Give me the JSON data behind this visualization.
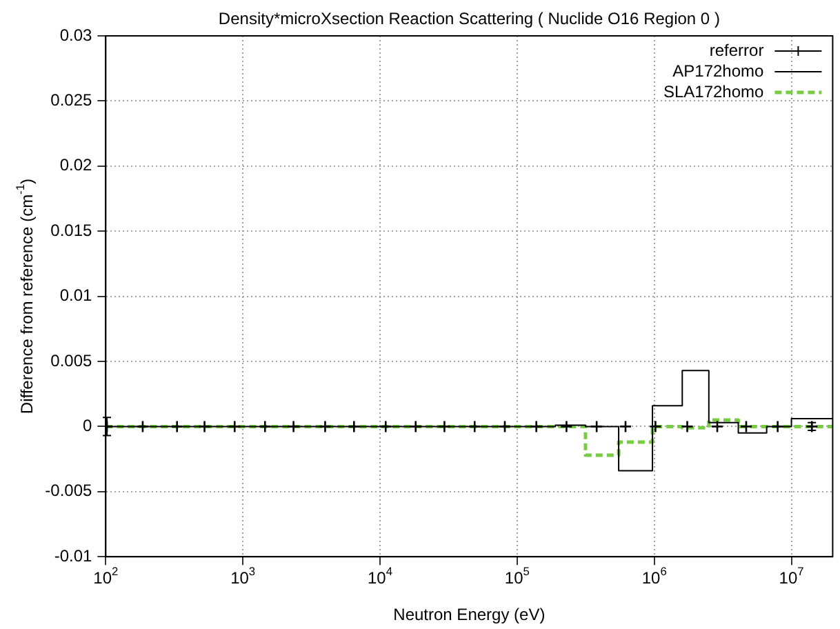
{
  "chart_data": {
    "type": "step",
    "title": "Density*microXsection Reaction Scattering ( Nuclide O16 Region 0 )",
    "xlabel": "Neutron Energy (eV)",
    "ylabel": "Difference from reference (cm$^{-1}$)",
    "log": "x",
    "xlim": [
      100,
      20000000
    ],
    "xticks": [
      {
        "value": 100,
        "label": "10$^{2}$"
      },
      {
        "value": 1000,
        "label": "10$^{3}$"
      },
      {
        "value": 10000,
        "label": "10$^{4}$"
      },
      {
        "value": 100000,
        "label": "10$^{5}$"
      },
      {
        "value": 1000000,
        "label": "10$^{6}$"
      },
      {
        "value": 10000000,
        "label": "10$^{7}$"
      }
    ],
    "ylim": [
      -0.01,
      0.03
    ],
    "yticks": [
      -0.01,
      -0.005,
      0,
      0.005,
      0.01,
      0.015,
      0.02,
      0.025,
      0.03
    ],
    "grid": true,
    "legend": "top right",
    "series": [
      {
        "name": "referror",
        "type": "scatter",
        "color": "#000000",
        "marker": "cross",
        "x": [
          102,
          186,
          331,
          525,
          871,
          1450,
          2340,
          3980,
          6460,
          11000,
          18200,
          29500,
          49000,
          81300,
          138000,
          229000,
          380000,
          617000,
          1020000,
          1740000,
          2880000,
          4680000,
          7940000,
          14100000
        ],
        "values": [
          0,
          0,
          0,
          0,
          0,
          0,
          0,
          0,
          0,
          0,
          0,
          0,
          0,
          0,
          0,
          0,
          0,
          0,
          0,
          0,
          0,
          0,
          0,
          0
        ],
        "errors": [
          0.0007,
          null,
          null,
          null,
          null,
          null,
          null,
          null,
          null,
          null,
          null,
          null,
          null,
          null,
          null,
          null,
          null,
          null,
          null,
          null,
          null,
          null,
          null,
          0.0003
        ]
      },
      {
        "name": "AP172homo",
        "color": "#000000",
        "line_style": "solid",
        "x": [
          100,
          190000,
          315000,
          550000,
          970000,
          1600000,
          2500000,
          4100000,
          6600000,
          10000000,
          20000000
        ],
        "values": [
          0,
          0.0001,
          0,
          -0.0034,
          0.0016,
          0.0043,
          0.0003,
          -0.0005,
          0,
          0.0006,
          0.0006
        ]
      },
      {
        "name": "SLA172homo",
        "color": "#77cc44",
        "line_style": "dashed",
        "x": [
          100,
          315000,
          550000,
          970000,
          1600000,
          2500000,
          4100000,
          20000000
        ],
        "values": [
          0,
          -0.0022,
          -0.0012,
          0,
          -0.0001,
          0.0005,
          0,
          0
        ]
      }
    ]
  }
}
